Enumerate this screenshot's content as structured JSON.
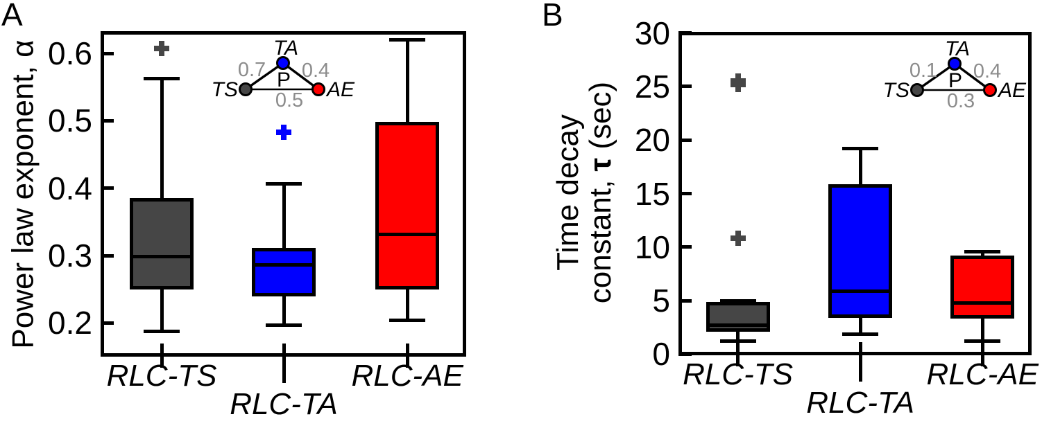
{
  "chart_data": [
    {
      "type": "box",
      "panel_label": "A",
      "ylabel": "Power law exponent, α",
      "ylabel_lines": [
        [
          "Power law exponent, α",
          "",
          ""
        ]
      ],
      "ylim": [
        0.15,
        0.633
      ],
      "yticks": {
        "values": [
          0.6,
          0.5,
          0.4,
          0.3,
          0.2
        ],
        "labels": [
          "0.6",
          "0.5",
          "0.4",
          "0.3",
          "0.2"
        ]
      },
      "categories": [
        "RLC-TS",
        "RLC-TA",
        "RLC-AE"
      ],
      "grid": false,
      "series": [
        {
          "name": "RLC-TS",
          "color": "#464646",
          "whisker_low": 0.188,
          "q1": 0.25,
          "median": 0.298,
          "q3": 0.385,
          "whisker_high": 0.563,
          "outliers": [
            0.607
          ]
        },
        {
          "name": "RLC-TA",
          "color": "#0000ff",
          "whisker_low": 0.197,
          "q1": 0.239,
          "median": 0.286,
          "q3": 0.311,
          "whisker_high": 0.406,
          "outliers": [
            0.483
          ]
        },
        {
          "name": "RLC-AE",
          "color": "#ff0000",
          "whisker_low": 0.204,
          "q1": 0.25,
          "median": 0.331,
          "q3": 0.498,
          "whisker_high": 0.62,
          "outliers": []
        }
      ],
      "inset": {
        "center_label": "P",
        "weight_color": "#8c8c8c",
        "nodes": [
          {
            "label": "TA",
            "color": "#0000ff"
          },
          {
            "label": "TS",
            "color": "#464646"
          },
          {
            "label": "AE",
            "color": "#ff0000"
          }
        ],
        "edge_weights": {
          "ts_ta": "0.7",
          "ta_ae": "0.4",
          "ts_ae": "0.5"
        }
      }
    },
    {
      "type": "box",
      "panel_label": "B",
      "ylabel": "Time decay constant, τ (sec)",
      "ylabel_lines": [
        [
          "Time decay",
          "",
          ""
        ],
        [
          "constant, ",
          "τ",
          " (sec)"
        ]
      ],
      "ylim": [
        -0.1,
        30.1
      ],
      "yticks": {
        "values": [
          30,
          25,
          20,
          15,
          10,
          5,
          0
        ],
        "labels": [
          "30",
          "25",
          "20",
          "15",
          "10",
          "5",
          "0"
        ]
      },
      "categories": [
        "RLC-TS",
        "RLC-TA",
        "RLC-AE"
      ],
      "grid": false,
      "series": [
        {
          "name": "RLC-TS",
          "color": "#464646",
          "whisker_low": 1.2,
          "q1": 2.1,
          "median": 2.7,
          "q3": 4.9,
          "whisker_high": 5.0,
          "outliers": [
            25.5,
            25.2,
            10.8
          ]
        },
        {
          "name": "RLC-TA",
          "color": "#0000ff",
          "whisker_low": 1.9,
          "q1": 3.4,
          "median": 5.9,
          "q3": 15.9,
          "whisker_high": 19.2,
          "outliers": []
        },
        {
          "name": "RLC-AE",
          "color": "#ff0000",
          "whisker_low": 1.2,
          "q1": 3.3,
          "median": 4.8,
          "q3": 9.2,
          "whisker_high": 9.6,
          "outliers": []
        }
      ],
      "inset": {
        "center_label": "P",
        "weight_color": "#8c8c8c",
        "nodes": [
          {
            "label": "TA",
            "color": "#0000ff"
          },
          {
            "label": "TS",
            "color": "#464646"
          },
          {
            "label": "AE",
            "color": "#ff0000"
          }
        ],
        "edge_weights": {
          "ts_ta": "0.1",
          "ta_ae": "0.4",
          "ts_ae": "0.3"
        }
      }
    }
  ]
}
